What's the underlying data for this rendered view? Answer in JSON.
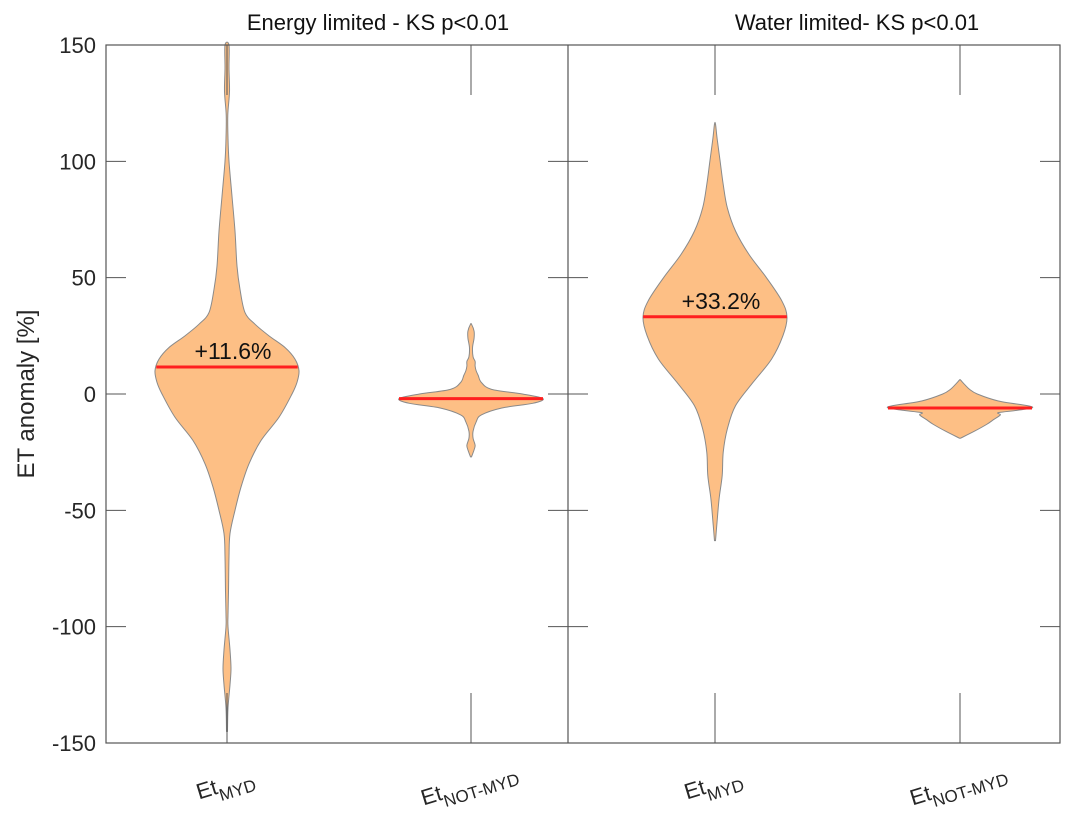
{
  "chart_data": {
    "type": "violin",
    "ylabel": "ET anomaly [%]",
    "ylim": [
      -150,
      150
    ],
    "yticks": [
      -150,
      -100,
      -50,
      0,
      50,
      100,
      150
    ],
    "grid": false,
    "fill_color": "#fdbf85",
    "edge_color": "#8a8a8a",
    "median_color": "#ff1f1f",
    "panels": [
      {
        "title": "Energy limited - KS p<0.01",
        "categories": [
          {
            "base": "Et",
            "sub": "MYD"
          },
          {
            "base": "Et",
            "sub": "NOT-MYD"
          }
        ],
        "violins": [
          {
            "median": 11.6,
            "annotation": "+11.6%",
            "profile": [
              [
                -145,
                0.5
              ],
              [
                -135,
                1
              ],
              [
                -125,
                3
              ],
              [
                -118,
                4
              ],
              [
                -110,
                3
              ],
              [
                -100,
                1
              ],
              [
                -95,
                1
              ],
              [
                -85,
                1.5
              ],
              [
                -70,
                2
              ],
              [
                -60,
                3
              ],
              [
                -50,
                8
              ],
              [
                -40,
                14
              ],
              [
                -30,
                22
              ],
              [
                -20,
                34
              ],
              [
                -10,
                52
              ],
              [
                0,
                65
              ],
              [
                5,
                70
              ],
              [
                10,
                72
              ],
              [
                15,
                68
              ],
              [
                20,
                58
              ],
              [
                25,
                42
              ],
              [
                30,
                28
              ],
              [
                35,
                18
              ],
              [
                45,
                13
              ],
              [
                55,
                10
              ],
              [
                70,
                8
              ],
              [
                85,
                5
              ],
              [
                100,
                2
              ],
              [
                110,
                1
              ],
              [
                120,
                0.8
              ],
              [
                130,
                2.5
              ],
              [
                140,
                2
              ],
              [
                150,
                2
              ]
            ]
          },
          {
            "median": -2,
            "annotation": "",
            "profile": [
              [
                -27,
                0.5
              ],
              [
                -24,
                3
              ],
              [
                -22,
                4
              ],
              [
                -19,
                2
              ],
              [
                -16,
                2
              ],
              [
                -12,
                5
              ],
              [
                -9,
                10
              ],
              [
                -6,
                30
              ],
              [
                -4,
                60
              ],
              [
                -2,
                70
              ],
              [
                0,
                50
              ],
              [
                2,
                20
              ],
              [
                5,
                10
              ],
              [
                8,
                7
              ],
              [
                10,
                5
              ],
              [
                12,
                4
              ],
              [
                14,
                4
              ],
              [
                16,
                2
              ],
              [
                20,
                1.5
              ],
              [
                24,
                3
              ],
              [
                27,
                3
              ],
              [
                30,
                0.5
              ]
            ]
          }
        ]
      },
      {
        "title": "Water limited- KS p<0.01",
        "categories": [
          {
            "base": "Et",
            "sub": "MYD"
          },
          {
            "base": "Et",
            "sub": "NOT-MYD"
          }
        ],
        "violins": [
          {
            "median": 33.2,
            "annotation": "+33.2%",
            "profile": [
              [
                -63,
                0.5
              ],
              [
                -55,
                2
              ],
              [
                -45,
                4
              ],
              [
                -35,
                7
              ],
              [
                -25,
                8
              ],
              [
                -15,
                12
              ],
              [
                -5,
                20
              ],
              [
                5,
                37
              ],
              [
                15,
                55
              ],
              [
                25,
                66
              ],
              [
                33,
                70
              ],
              [
                40,
                65
              ],
              [
                50,
                50
              ],
              [
                60,
                33
              ],
              [
                70,
                20
              ],
              [
                80,
                12
              ],
              [
                90,
                8
              ],
              [
                100,
                5
              ],
              [
                110,
                2
              ],
              [
                116,
                0.5
              ]
            ]
          },
          {
            "median": -6,
            "annotation": "",
            "profile": [
              [
                -19,
                0.5
              ],
              [
                -16,
                15
              ],
              [
                -13,
                28
              ],
              [
                -11,
                35
              ],
              [
                -9,
                42
              ],
              [
                -8,
                40
              ],
              [
                -7,
                60
              ],
              [
                -6,
                75
              ],
              [
                -5,
                70
              ],
              [
                -3,
                40
              ],
              [
                0,
                18
              ],
              [
                2,
                10
              ],
              [
                4,
                5
              ],
              [
                6,
                0.5
              ]
            ]
          }
        ]
      }
    ]
  }
}
